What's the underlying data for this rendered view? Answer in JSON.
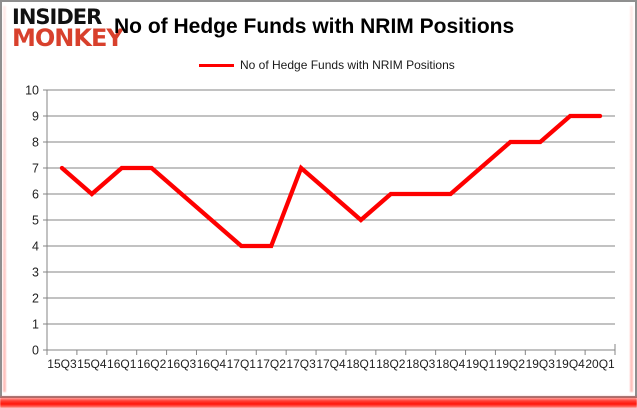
{
  "logo": {
    "line1": "INSIDER",
    "line2": "MONKEY",
    "brand_red": "#d8402c"
  },
  "header": {
    "title": "No of Hedge Funds with NRIM Positions"
  },
  "legend": {
    "label": "No of Hedge Funds with NRIM  Positions",
    "line_color": "#fe0000"
  },
  "colors": {
    "series_line": "#fe0000",
    "gridline": "#848484",
    "axis_text": "#1f1f1f",
    "frame_border": "#8f8f8f",
    "bottom_glow": "#ff1407"
  },
  "chart_data": {
    "type": "line",
    "title": "No of Hedge Funds with NRIM Positions",
    "categories": [
      "15Q3",
      "15Q4",
      "16Q1",
      "16Q2",
      "16Q3",
      "16Q4",
      "17Q1",
      "17Q2",
      "17Q3",
      "17Q4",
      "18Q1",
      "18Q2",
      "18Q3",
      "18Q4",
      "19Q1",
      "19Q2",
      "19Q3",
      "19Q4",
      "20Q1"
    ],
    "series": [
      {
        "name": "No of Hedge Funds with NRIM Positions",
        "color": "#fe0000",
        "values": [
          7,
          6,
          7,
          7,
          6,
          5,
          4,
          4,
          7,
          6,
          5,
          6,
          6,
          6,
          7,
          8,
          8,
          9,
          9
        ]
      }
    ],
    "xlabel": "",
    "ylabel": "",
    "ylim": [
      0,
      10
    ],
    "ytick_step": 1,
    "yticks": [
      0,
      1,
      2,
      3,
      4,
      5,
      6,
      7,
      8,
      9,
      10
    ],
    "grid": true,
    "legend_position": "top-center"
  }
}
